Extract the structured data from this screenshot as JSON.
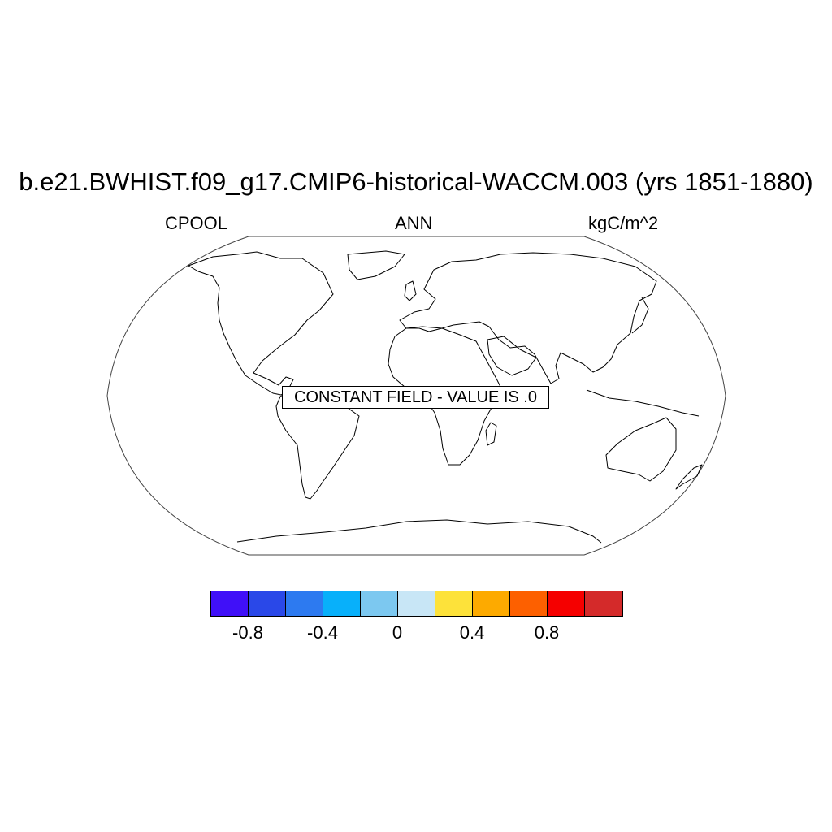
{
  "header": {
    "title": "b.e21.BWHIST.f09_g17.CMIP6-historical-WACCM.003 (yrs 1851-1880)",
    "left_label": "CPOOL",
    "center_label": "ANN",
    "right_label": "kgC/m^2"
  },
  "map": {
    "projection": "robinson",
    "notice": "CONSTANT FIELD - VALUE IS .0"
  },
  "colorbar": {
    "colors": [
      "#4010f8",
      "#2a48e8",
      "#2d7af0",
      "#08b0fa",
      "#7cc8f0",
      "#c8e6f6",
      "#fde23a",
      "#fdaa00",
      "#fd6000",
      "#f50000",
      "#d42a2a"
    ],
    "tick_labels": [
      "-0.8",
      "-0.4",
      "0",
      "0.4",
      "0.8"
    ]
  }
}
